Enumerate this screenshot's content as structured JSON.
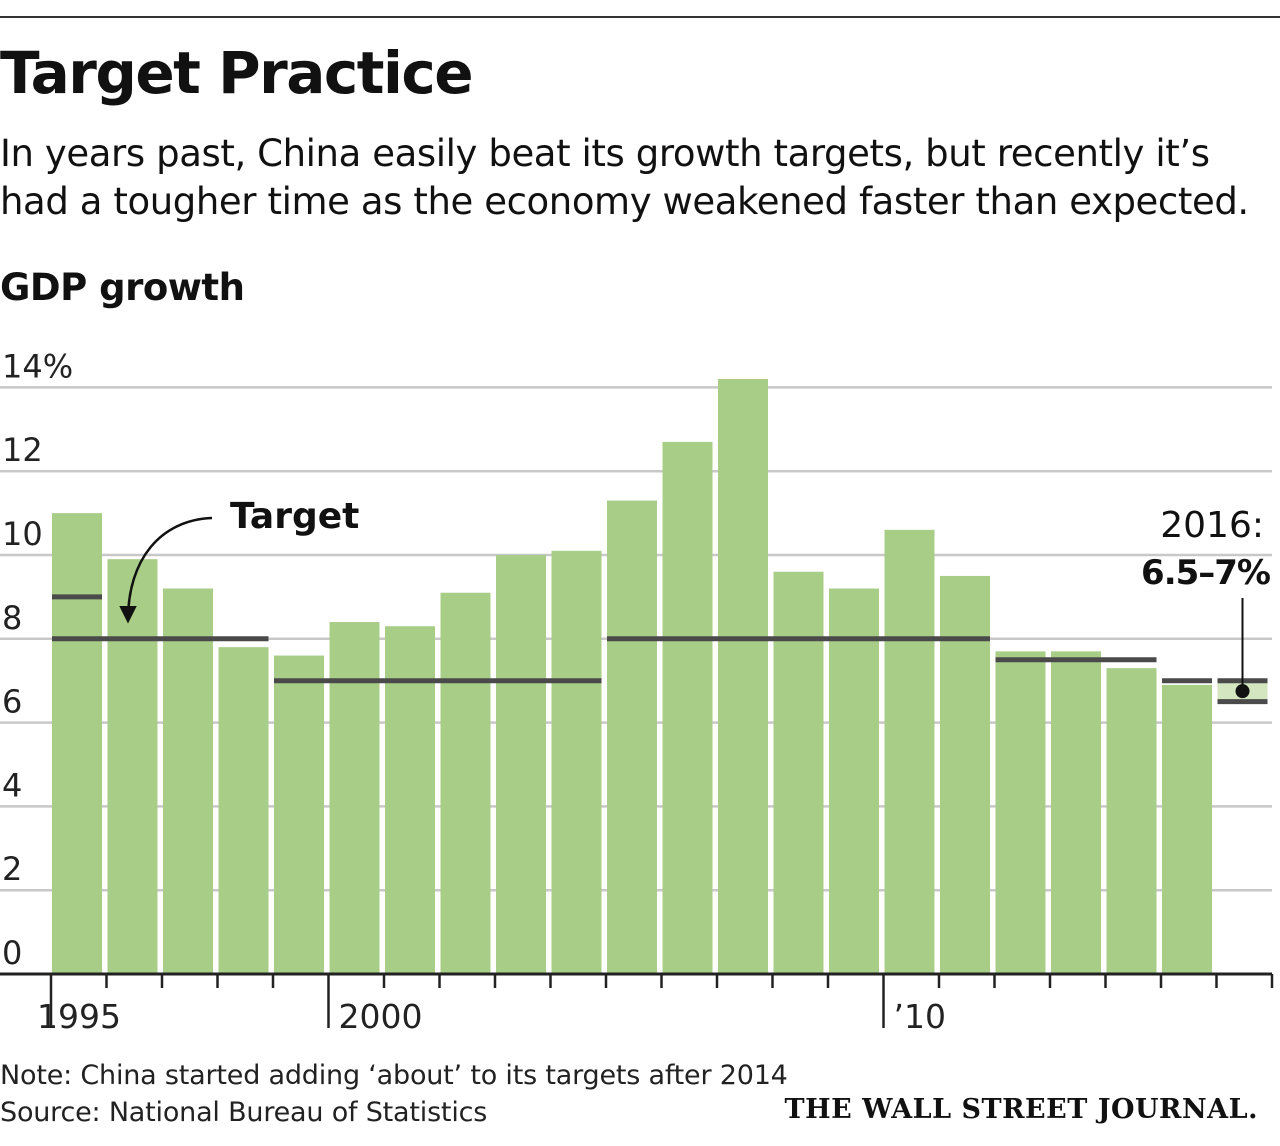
{
  "header": {
    "title": "Target Practice",
    "subtitle": "In years past, China easily beat its growth targets, but recently it’s had a tougher time as the economy weakened faster than expected."
  },
  "footer": {
    "note": "Note: China started adding ‘about’ to its targets after 2014",
    "source": "Source: National Bureau of Statistics",
    "credit": "THE WALL STREET JOURNAL."
  },
  "colors": {
    "bar": "#a8cd86",
    "target_line": "#4a4a4a",
    "gridline": "#c8c8c8",
    "axis": "#222222",
    "target_band": "#d3e6bf"
  },
  "chart_data": {
    "type": "bar",
    "ylabel": "GDP growth",
    "ylim": [
      0,
      14
    ],
    "yticks": [
      {
        "value": 0,
        "label": "0"
      },
      {
        "value": 2,
        "label": "2"
      },
      {
        "value": 4,
        "label": "4"
      },
      {
        "value": 6,
        "label": "6"
      },
      {
        "value": 8,
        "label": "8"
      },
      {
        "value": 10,
        "label": "10"
      },
      {
        "value": 12,
        "label": "12"
      },
      {
        "value": 14,
        "label": "14%"
      }
    ],
    "xlim": [
      1995,
      2017
    ],
    "xtick_labels": [
      {
        "year": 1995,
        "label": "1995"
      },
      {
        "year": 2000,
        "label": "2000"
      },
      {
        "year": 2010,
        "label": "’10"
      }
    ],
    "grid": true,
    "series": [
      {
        "values": [
          {
            "year": 1995,
            "value": 11.0
          },
          {
            "year": 1996,
            "value": 9.9
          },
          {
            "year": 1997,
            "value": 9.2
          },
          {
            "year": 1998,
            "value": 7.8
          },
          {
            "year": 1999,
            "value": 7.6
          },
          {
            "year": 2000,
            "value": 8.4
          },
          {
            "year": 2001,
            "value": 8.3
          },
          {
            "year": 2002,
            "value": 9.1
          },
          {
            "year": 2003,
            "value": 10.0
          },
          {
            "year": 2004,
            "value": 10.1
          },
          {
            "year": 2005,
            "value": 11.3
          },
          {
            "year": 2006,
            "value": 12.7
          },
          {
            "year": 2007,
            "value": 14.2
          },
          {
            "year": 2008,
            "value": 9.6
          },
          {
            "year": 2009,
            "value": 9.2
          },
          {
            "year": 2010,
            "value": 10.6
          },
          {
            "year": 2011,
            "value": 9.5
          },
          {
            "year": 2012,
            "value": 7.7
          },
          {
            "year": 2013,
            "value": 7.7
          },
          {
            "year": 2014,
            "value": 7.3
          },
          {
            "year": 2015,
            "value": 6.9
          }
        ]
      }
    ],
    "targets": [
      {
        "start": 1995,
        "end": 1995,
        "value": 9.0
      },
      {
        "start": 1995,
        "end": 1998,
        "value": 8.0
      },
      {
        "start": 1999,
        "end": 2004,
        "value": 7.0
      },
      {
        "start": 2005,
        "end": 2011,
        "value": 8.0
      },
      {
        "start": 2012,
        "end": 2014,
        "value": 7.5
      },
      {
        "start": 2015,
        "end": 2015,
        "value": 7.0
      }
    ],
    "target_2016": {
      "year": 2016,
      "low": 6.5,
      "high": 7.0
    },
    "annotations": {
      "target_label": "Target",
      "target_2016_year": "2016:",
      "target_2016_range": "6.5–7%"
    }
  }
}
